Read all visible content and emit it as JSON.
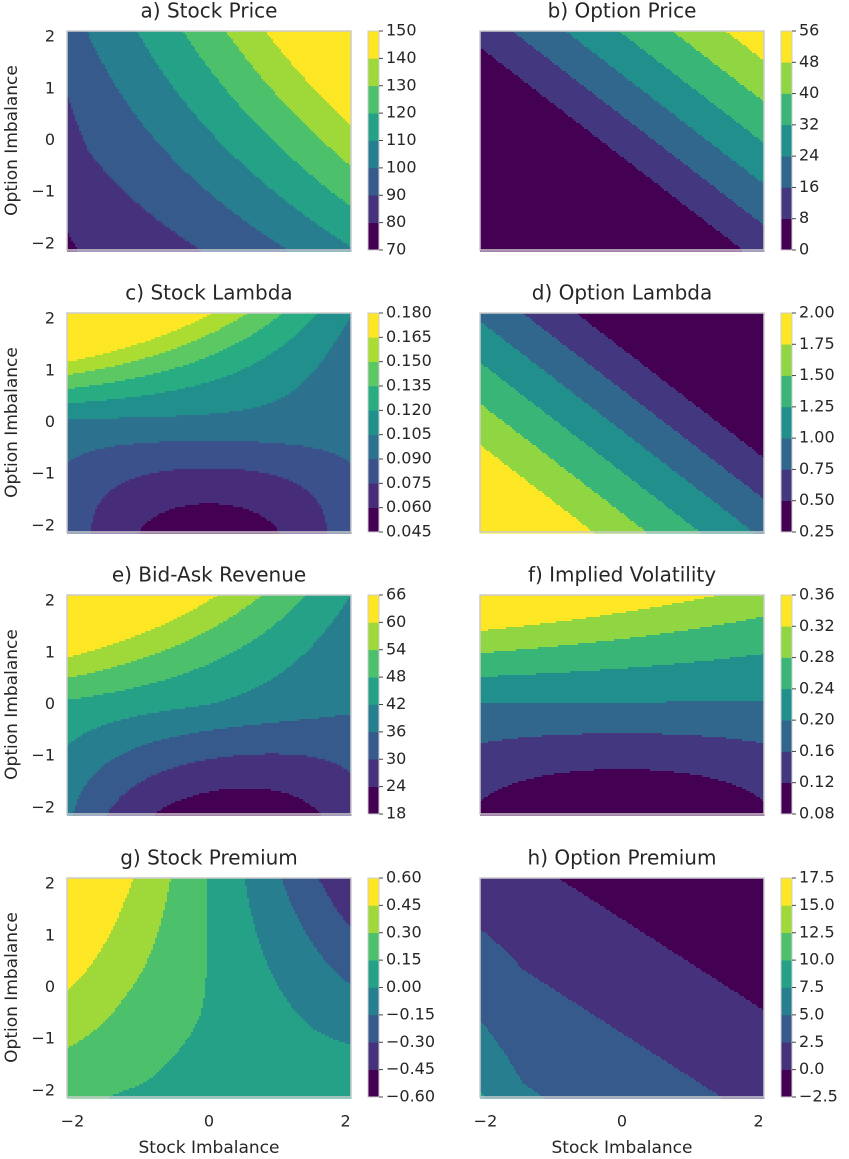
{
  "chart_data": [
    {
      "type": "contour",
      "title": "a) Stock Price",
      "ylabel": "Option Imbalance",
      "xlim": [
        -2.08,
        2.08
      ],
      "ylim": [
        -2.12,
        2.12
      ],
      "yticks": [
        {
          "value": -2,
          "label": "−2"
        },
        {
          "value": -1,
          "label": "−1"
        },
        0,
        1,
        2
      ],
      "levels": [
        70,
        80,
        90,
        100,
        110,
        120,
        130,
        140,
        150
      ],
      "colormap": [
        "#440154",
        "#472c7a",
        "#3b518b",
        "#2c718e",
        "#21908d",
        "#27ad81",
        "#5cc863",
        "#aadc32",
        "#fde725"
      ]
    },
    {
      "type": "contour",
      "title": "b) Option Price",
      "xlim": [
        -2.08,
        2.08
      ],
      "ylim": [
        -2.12,
        2.12
      ],
      "levels": [
        0,
        8,
        16,
        24,
        32,
        40,
        48,
        56
      ],
      "colormap": [
        "#440154",
        "#472c7a",
        "#3b518b",
        "#2c718e",
        "#21908d",
        "#27ad81",
        "#5cc863",
        "#aadc32",
        "#fde725"
      ]
    },
    {
      "type": "contour",
      "title": "c) Stock Lambda",
      "ylabel": "Option Imbalance",
      "xlim": [
        -2.08,
        2.08
      ],
      "ylim": [
        -2.12,
        2.12
      ],
      "yticks": [
        {
          "value": -2,
          "label": "−2"
        },
        {
          "value": -1,
          "label": "−1"
        },
        0,
        1,
        2
      ],
      "levels": [
        0.045,
        {
          "value": 0.06,
          "label": "0.060"
        },
        0.075,
        {
          "value": 0.09,
          "label": "0.090"
        },
        0.105,
        {
          "value": 0.12,
          "label": "0.120"
        },
        0.135,
        {
          "value": 0.15,
          "label": "0.150"
        },
        0.165,
        {
          "value": 0.18,
          "label": "0.180"
        }
      ],
      "colormap": [
        "#440154",
        "#472c7a",
        "#3b518b",
        "#2c718e",
        "#21908d",
        "#27ad81",
        "#5cc863",
        "#aadc32",
        "#fde725"
      ]
    },
    {
      "type": "contour",
      "title": "d) Option Lambda",
      "xlim": [
        -2.08,
        2.08
      ],
      "ylim": [
        -2.12,
        2.12
      ],
      "levels": [
        0.25,
        {
          "value": 0.5,
          "label": "0.50"
        },
        0.75,
        {
          "value": 1,
          "label": "1.00"
        },
        1.25,
        {
          "value": 1.5,
          "label": "1.50"
        },
        1.75,
        {
          "value": 2,
          "label": "2.00"
        }
      ],
      "colormap": [
        "#440154",
        "#472c7a",
        "#3b518b",
        "#2c718e",
        "#21908d",
        "#27ad81",
        "#5cc863",
        "#aadc32",
        "#fde725"
      ]
    },
    {
      "type": "contour",
      "title": "e) Bid-Ask Revenue",
      "ylabel": "Option Imbalance",
      "xlim": [
        -2.08,
        2.08
      ],
      "ylim": [
        -2.12,
        2.12
      ],
      "yticks": [
        {
          "value": -2,
          "label": "−2"
        },
        {
          "value": -1,
          "label": "−1"
        },
        0,
        1,
        2
      ],
      "levels": [
        18,
        24,
        30,
        36,
        42,
        48,
        54,
        60,
        66
      ],
      "colormap": [
        "#440154",
        "#472c7a",
        "#3b518b",
        "#2c718e",
        "#21908d",
        "#27ad81",
        "#5cc863",
        "#aadc32",
        "#fde725"
      ]
    },
    {
      "type": "contour",
      "title": "f) Implied Volatility",
      "xlim": [
        -2.08,
        2.08
      ],
      "ylim": [
        -2.12,
        2.12
      ],
      "levels": [
        0.08,
        0.12,
        0.16,
        {
          "value": 0.2,
          "label": "0.20"
        },
        0.24,
        0.28,
        0.32,
        0.36
      ],
      "colormap": [
        "#440154",
        "#472c7a",
        "#3b518b",
        "#2c718e",
        "#21908d",
        "#27ad81",
        "#5cc863",
        "#aadc32",
        "#fde725"
      ]
    },
    {
      "type": "contour",
      "title": "g) Stock Premium",
      "ylabel": "Option Imbalance",
      "xlabel": "Stock Imbalance",
      "xlim": [
        -2.08,
        2.08
      ],
      "ylim": [
        -2.12,
        2.12
      ],
      "xticks": [
        {
          "value": -2,
          "label": "−2"
        },
        0,
        2
      ],
      "yticks": [
        {
          "value": -2,
          "label": "−2"
        },
        {
          "value": -1,
          "label": "−1"
        },
        0,
        1,
        2
      ],
      "levels": [
        {
          "value": -0.6,
          "label": "−0.60"
        },
        {
          "value": -0.45,
          "label": "−0.45"
        },
        {
          "value": -0.3,
          "label": "−0.30"
        },
        {
          "value": -0.15,
          "label": "−0.15"
        },
        {
          "value": 0,
          "label": "0.00"
        },
        0.15,
        {
          "value": 0.3,
          "label": "0.30"
        },
        0.45,
        {
          "value": 0.6,
          "label": "0.60"
        }
      ],
      "colormap": [
        "#440154",
        "#472c7a",
        "#3b518b",
        "#2c718e",
        "#21908d",
        "#27ad81",
        "#5cc863",
        "#aadc32",
        "#fde725"
      ]
    },
    {
      "type": "contour",
      "title": "h) Option Premium",
      "xlabel": "Stock Imbalance",
      "xlim": [
        -2.08,
        2.08
      ],
      "ylim": [
        -2.12,
        2.12
      ],
      "xticks": [
        {
          "value": -2,
          "label": "−2"
        },
        0,
        2
      ],
      "levels": [
        {
          "value": -2.5,
          "label": "−2.5"
        },
        {
          "value": 0,
          "label": "0.0"
        },
        2.5,
        {
          "value": 5,
          "label": "5.0"
        },
        7.5,
        {
          "value": 10,
          "label": "10.0"
        },
        12.5,
        {
          "value": 15,
          "label": "15.0"
        },
        17.5
      ],
      "colormap": [
        "#440154",
        "#472c7a",
        "#3b518b",
        "#2c718e",
        "#21908d",
        "#27ad81",
        "#5cc863",
        "#aadc32",
        "#fde725"
      ]
    }
  ]
}
